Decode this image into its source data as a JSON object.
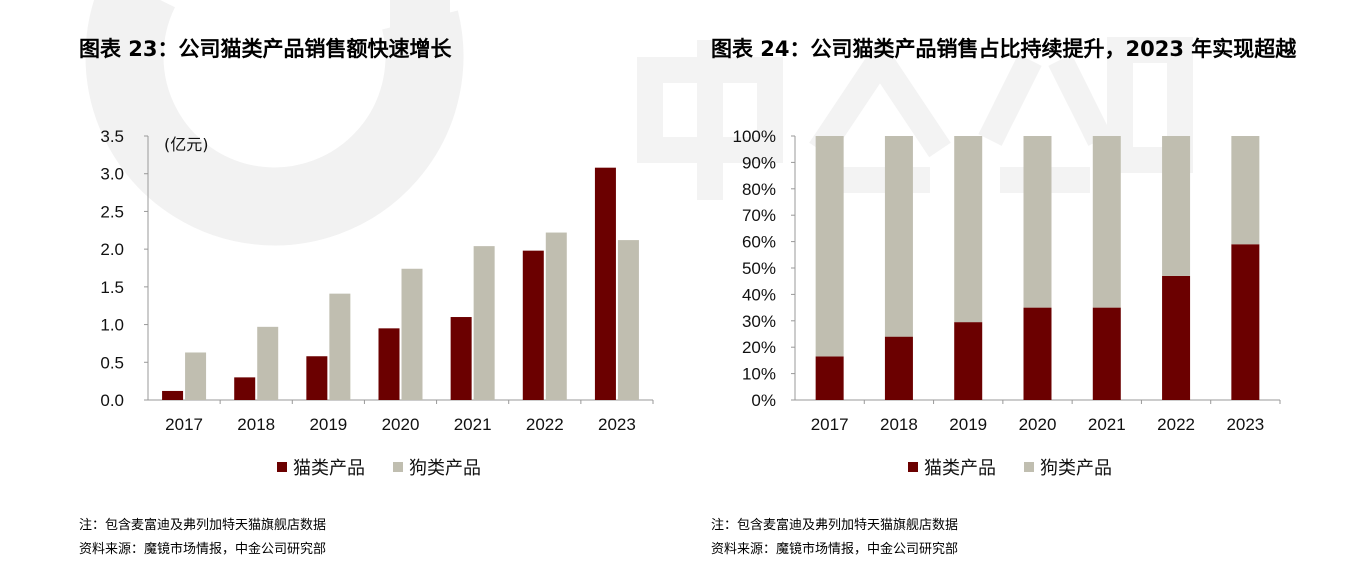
{
  "colors": {
    "cat": "#6b0000",
    "dog": "#c0beb0",
    "axis": "#999999",
    "watermark": "#f3f3f3"
  },
  "left": {
    "title": "图表 23：公司猫类产品销售额快速增长",
    "note": "注：包含麦富迪及弗列加特天猫旗舰店数据",
    "source": "资料来源：魔镜市场情报，中金公司研究部"
  },
  "right": {
    "title": "图表 24：公司猫类产品销售占比持续提升，2023 年实现超越",
    "note": "注：包含麦富迪及弗列加特天猫旗舰店数据",
    "source": "资料来源：魔镜市场情报，中金公司研究部"
  },
  "chart_data": [
    {
      "type": "bar",
      "title": "图表 23：公司猫类产品销售额快速增长",
      "unit_label": "(亿元)",
      "categories": [
        "2017",
        "2018",
        "2019",
        "2020",
        "2021",
        "2022",
        "2023"
      ],
      "series": [
        {
          "name": "猫类产品",
          "values": [
            0.12,
            0.3,
            0.58,
            0.95,
            1.1,
            1.98,
            3.08
          ]
        },
        {
          "name": "狗类产品",
          "values": [
            0.63,
            0.97,
            1.41,
            1.74,
            2.04,
            2.22,
            2.12
          ]
        }
      ],
      "ylim": [
        0,
        3.5
      ],
      "yticks": [
        "0.0",
        "0.5",
        "1.0",
        "1.5",
        "2.0",
        "2.5",
        "3.0",
        "3.5"
      ],
      "grid": false,
      "legend": "bottom"
    },
    {
      "type": "bar",
      "stacked": true,
      "title": "图表 24：公司猫类产品销售占比持续提升，2023 年实现超越",
      "categories": [
        "2017",
        "2018",
        "2019",
        "2020",
        "2021",
        "2022",
        "2023"
      ],
      "series": [
        {
          "name": "猫类产品",
          "values": [
            16.5,
            24,
            29.5,
            35,
            35,
            47,
            59
          ]
        },
        {
          "name": "狗类产品",
          "values": [
            83.5,
            76,
            70.5,
            65,
            65,
            53,
            41
          ]
        }
      ],
      "ylim": [
        0,
        100
      ],
      "yticks": [
        "0%",
        "10%",
        "20%",
        "30%",
        "40%",
        "50%",
        "60%",
        "70%",
        "80%",
        "90%",
        "100%"
      ],
      "grid": false,
      "legend": "bottom"
    }
  ]
}
